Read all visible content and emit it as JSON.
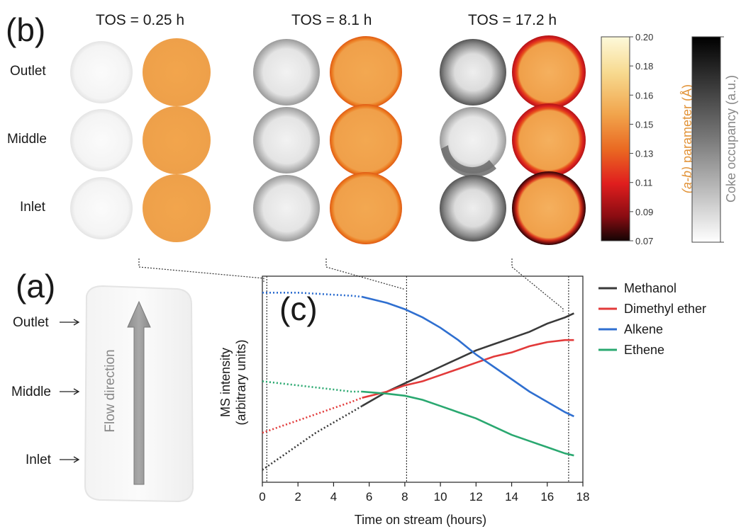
{
  "panels": {
    "b_letter": "(b)",
    "a_letter": "(a)",
    "c_letter": "(c)"
  },
  "tos_labels": [
    "TOS = 0.25 h",
    "TOS = 8.1 h",
    "TOS = 17.2 h"
  ],
  "row_labels": [
    "Outlet",
    "Middle",
    "Inlet"
  ],
  "colorbar_param": {
    "label_italic": "(a-b)",
    "label_rest": " parameter (Å)",
    "ticks": [
      "0.20",
      "0.18",
      "0.16",
      "0.15",
      "0.13",
      "0.11",
      "0.09",
      "0.07"
    ],
    "label_color": "#e2943a"
  },
  "colorbar_coke": {
    "label": "Coke occupancy (a.u.)"
  },
  "reactor": {
    "labels": [
      "Outlet",
      "Middle",
      "Inlet"
    ],
    "flow_label": "Flow direction"
  },
  "chart_data": {
    "type": "line",
    "xlabel": "Time on stream (hours)",
    "ylabel_line1": "MS intensity",
    "ylabel_line2": "(arbitrary units)",
    "xlim": [
      0,
      18
    ],
    "ylim": [
      0,
      1
    ],
    "x_ticks": [
      0,
      2,
      4,
      6,
      8,
      10,
      12,
      14,
      16,
      18
    ],
    "vlines": [
      0.25,
      8.1,
      17.2
    ],
    "series": [
      {
        "name": "Methanol",
        "color": "#3a3a3a",
        "dotted": {
          "x": [
            0,
            1,
            2,
            3,
            4,
            5,
            5.6
          ],
          "y": [
            0.06,
            0.12,
            0.18,
            0.24,
            0.29,
            0.34,
            0.37
          ]
        },
        "solid": {
          "x": [
            5.6,
            7,
            8,
            9,
            10,
            11,
            12,
            13,
            14,
            15,
            16,
            17,
            17.5
          ],
          "y": [
            0.37,
            0.44,
            0.48,
            0.52,
            0.56,
            0.6,
            0.64,
            0.67,
            0.7,
            0.73,
            0.77,
            0.8,
            0.82
          ]
        }
      },
      {
        "name": "Dimethyl  ether",
        "color": "#e23a3a",
        "dotted": {
          "x": [
            0,
            1,
            2,
            3,
            4,
            5,
            5.6
          ],
          "y": [
            0.24,
            0.27,
            0.3,
            0.33,
            0.36,
            0.39,
            0.41
          ]
        },
        "solid": {
          "x": [
            5.6,
            7,
            8,
            9,
            10,
            11,
            12,
            13,
            14,
            15,
            16,
            17,
            17.5
          ],
          "y": [
            0.41,
            0.44,
            0.47,
            0.49,
            0.52,
            0.55,
            0.58,
            0.61,
            0.63,
            0.66,
            0.68,
            0.69,
            0.69
          ]
        }
      },
      {
        "name": "Alkene",
        "color": "#2f6fd0",
        "dotted": {
          "x": [
            0,
            1,
            2,
            3,
            4,
            5,
            5.6
          ],
          "y": [
            0.92,
            0.92,
            0.92,
            0.915,
            0.91,
            0.905,
            0.9
          ]
        },
        "solid": {
          "x": [
            5.6,
            7,
            8,
            9,
            10,
            11,
            12,
            13,
            14,
            15,
            16,
            17,
            17.5
          ],
          "y": [
            0.9,
            0.87,
            0.84,
            0.8,
            0.75,
            0.69,
            0.62,
            0.56,
            0.5,
            0.44,
            0.39,
            0.34,
            0.32
          ]
        }
      },
      {
        "name": "Ethene",
        "color": "#2aa870",
        "dotted": {
          "x": [
            0,
            1,
            2,
            3,
            4,
            5,
            5.6
          ],
          "y": [
            0.49,
            0.48,
            0.47,
            0.46,
            0.45,
            0.44,
            0.44
          ]
        },
        "solid": {
          "x": [
            5.6,
            7,
            8,
            9,
            10,
            11,
            12,
            13,
            14,
            15,
            16,
            17,
            17.5
          ],
          "y": [
            0.44,
            0.43,
            0.42,
            0.4,
            0.37,
            0.34,
            0.31,
            0.27,
            0.23,
            0.2,
            0.17,
            0.14,
            0.13
          ]
        }
      }
    ]
  }
}
